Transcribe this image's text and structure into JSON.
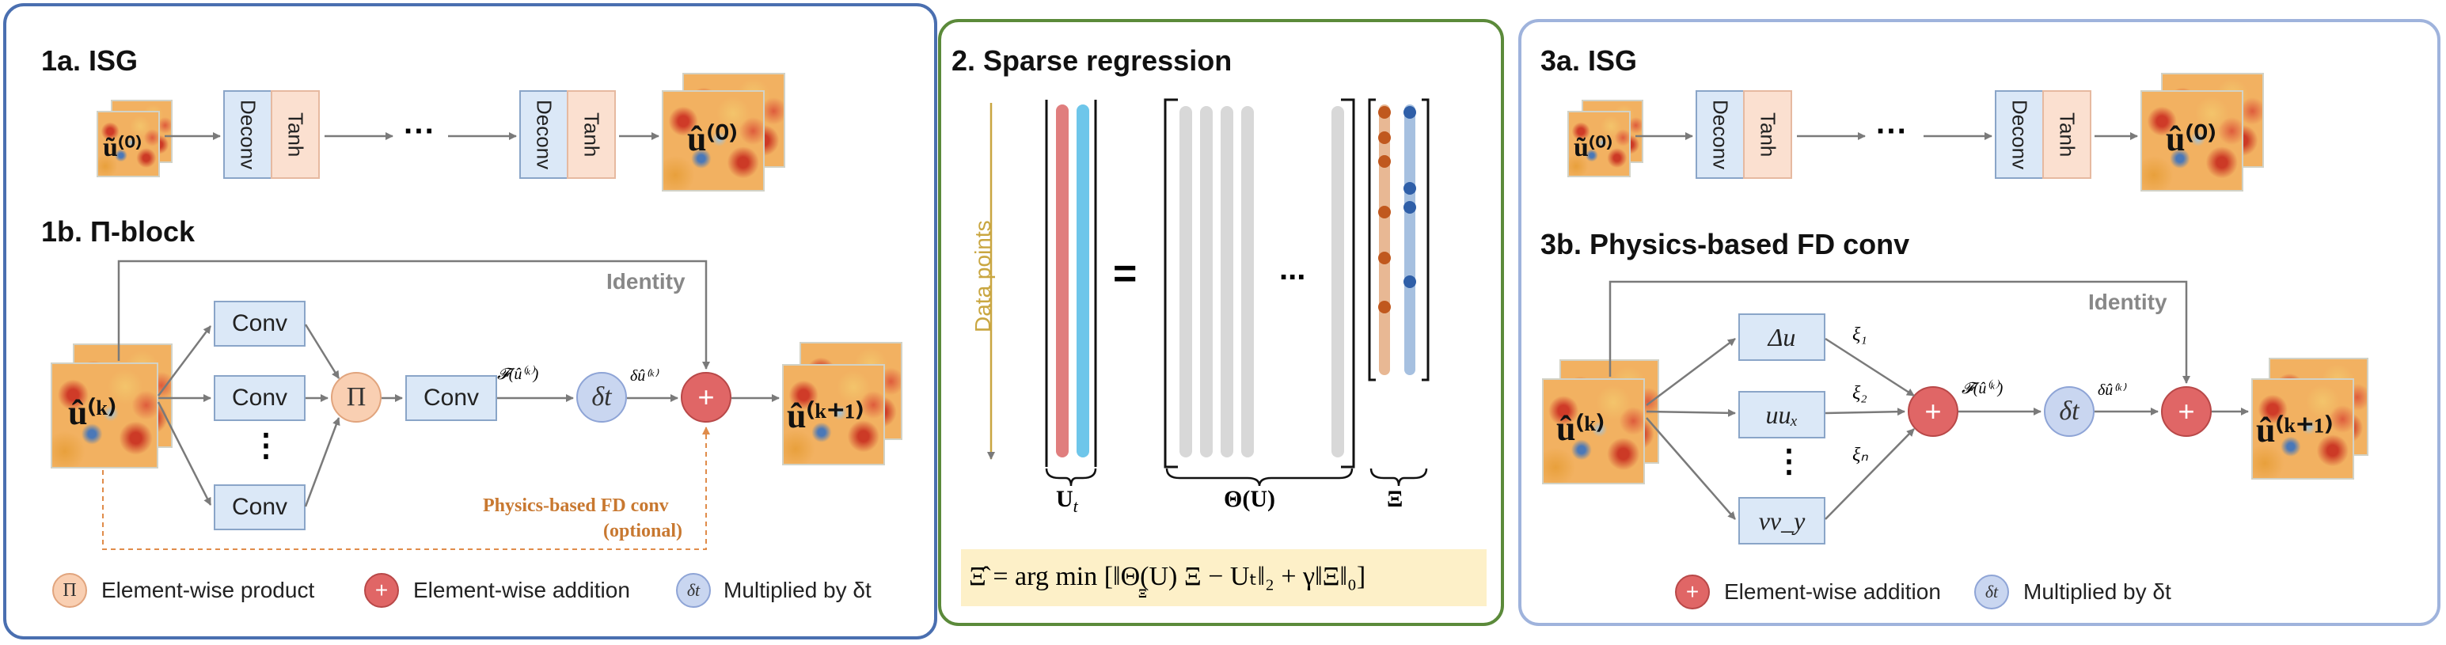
{
  "panels": {
    "p1a_title": "1a. ISG",
    "p1b_title": "1b. Π-block",
    "p2_title": "2. Sparse regression",
    "p3a_title": "3a. ISG",
    "p3b_title": "3b. Physics-based FD conv"
  },
  "isg": {
    "deconv": "Deconv",
    "tanh": "Tanh",
    "ellipsis": "···",
    "input_label": "ũ⁽⁰⁾",
    "output_label": "û⁽⁰⁾"
  },
  "pi_block": {
    "input_label": "û⁽ᵏ⁾",
    "output_label": "û⁽ᵏ⁺¹⁾",
    "conv": "Conv",
    "vdots": "⋮",
    "pi_symbol": "Π",
    "dt_symbol": "δt",
    "plus_symbol": "+",
    "f_label": "𝓕(û⁽ᵏ⁾)",
    "du_label": "δû⁽ᵏ⁾",
    "identity": "Identity",
    "physics_note_line1": "Physics-based FD conv",
    "physics_note_line2": "(optional)"
  },
  "sparse": {
    "data_points": "Data points",
    "equals": "=",
    "dots": "...",
    "label_ut": "U",
    "label_ut_sub": "t",
    "label_theta": "Θ(U)",
    "label_xi": "Ξ",
    "equation": "Ξ̂ = arg min [‖Θ(U) Ξ − Uₜ‖₂ + γ‖Ξ‖₀]",
    "eq_under": "Ξ"
  },
  "fd_conv": {
    "input_label": "û⁽ᵏ⁾",
    "output_label": "û⁽ᵏ⁺¹⁾",
    "term1": "Δu",
    "term2": "uuₓ",
    "term3": "vv_y",
    "vdots": "⋮",
    "xi1": "ξ₁",
    "xi2": "ξ₂",
    "xin": "ξₙ",
    "identity": "Identity",
    "f_label": "𝓕(û⁽ᵏ⁾)",
    "du_label": "δû⁽ᵏ⁾",
    "dt_symbol": "δt",
    "plus_symbol": "+"
  },
  "legend": {
    "pi_text": "Element-wise product",
    "add_text": "Element-wise addition",
    "dt_text": "Multiplied by δt",
    "pi_symbol": "Π",
    "plus_symbol": "+",
    "dt_symbol": "δt"
  },
  "colors": {
    "panel1_border": "#4a6fb0",
    "panel2_border": "#5b8a3a",
    "panel3_border": "#9fb3dc",
    "conv_fill": "#dbe8f7",
    "tanh_fill": "#fbe0d0",
    "plus_fill": "#e06666",
    "dt_fill": "#c9d6f0",
    "pi_fill": "#f9cfb2",
    "ut_red": "#e07e7e",
    "ut_blue": "#6ec6ea",
    "theta_gray": "#d8d8d8",
    "xi_orange": "#e8b894",
    "xi_blue": "#a6c0e0",
    "eq_bg": "#fdf0c8",
    "dashed_orange": "#e08c4a"
  }
}
